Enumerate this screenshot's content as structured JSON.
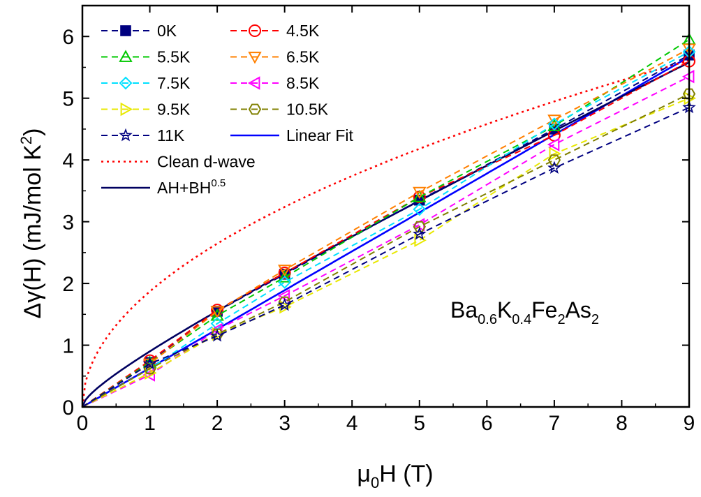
{
  "chart_data": {
    "type": "line",
    "xlabel": {
      "main": "μ",
      "sub": "0",
      "rest": "H (T)"
    },
    "ylabel": {
      "main": "Δγ(H) (mJ/mol K",
      "sup": "2",
      "rest": ")"
    },
    "xlim": [
      0,
      9
    ],
    "ylim": [
      0,
      6.5
    ],
    "xticks": [
      0,
      1,
      2,
      3,
      4,
      5,
      6,
      7,
      8,
      9
    ],
    "yticks": [
      0,
      1,
      2,
      3,
      4,
      5,
      6
    ],
    "grid": false,
    "legend_position": "top-left",
    "annotation": {
      "parts": [
        {
          "t": "Ba",
          "sub": false
        },
        {
          "t": "0.6",
          "sub": true
        },
        {
          "t": "K",
          "sub": false
        },
        {
          "t": "0.4",
          "sub": true
        },
        {
          "t": "Fe",
          "sub": false
        },
        {
          "t": "2",
          "sub": true
        },
        {
          "t": "As",
          "sub": false
        },
        {
          "t": "2",
          "sub": true
        }
      ]
    },
    "x": [
      0,
      1,
      2,
      3,
      5,
      7,
      9
    ],
    "series": [
      {
        "name": "0K",
        "color": "#000080",
        "marker": "square",
        "style": "dashed",
        "values": [
          0,
          0.72,
          1.55,
          2.15,
          3.35,
          4.5,
          5.7
        ]
      },
      {
        "name": "4.5K",
        "color": "#ff0000",
        "marker": "circle",
        "style": "dashed",
        "values": [
          0,
          0.75,
          1.57,
          2.17,
          3.4,
          4.4,
          5.6
        ]
      },
      {
        "name": "5.5K",
        "color": "#00c800",
        "marker": "triangle-up",
        "style": "dashed",
        "values": [
          0,
          0.72,
          1.48,
          2.1,
          3.4,
          4.55,
          5.95
        ]
      },
      {
        "name": "6.5K",
        "color": "#ff8000",
        "marker": "triangle-down",
        "style": "dashed",
        "values": [
          0,
          0.7,
          1.55,
          2.22,
          3.48,
          4.65,
          5.8
        ]
      },
      {
        "name": "7.5K",
        "color": "#00e0ff",
        "marker": "diamond",
        "style": "dashed",
        "values": [
          0,
          0.62,
          1.35,
          2.02,
          3.2,
          4.58,
          5.75
        ]
      },
      {
        "name": "8.5K",
        "color": "#ff00ff",
        "marker": "triangle-left",
        "style": "dashed",
        "values": [
          0,
          0.52,
          1.25,
          1.8,
          2.95,
          4.25,
          5.35
        ]
      },
      {
        "name": "9.5K",
        "color": "#e8e800",
        "marker": "triangle-right",
        "style": "dashed",
        "values": [
          0,
          0.55,
          1.18,
          1.62,
          2.7,
          4.1,
          5.0
        ]
      },
      {
        "name": "10.5K",
        "color": "#808000",
        "marker": "hexagon",
        "style": "dashed",
        "values": [
          0,
          0.62,
          1.18,
          1.7,
          2.92,
          4.0,
          5.07
        ]
      },
      {
        "name": "11K",
        "color": "#000080",
        "marker": "star",
        "style": "dashed",
        "values": [
          0,
          0.7,
          1.15,
          1.65,
          2.8,
          3.87,
          4.85
        ]
      }
    ],
    "fits": [
      {
        "name": "Linear Fit",
        "color": "#0000ff",
        "style": "solid",
        "kind": "linear",
        "slope": 0.63,
        "intercept": 0
      },
      {
        "name": "Clean d-wave",
        "color": "#ff0000",
        "style": "dotted",
        "kind": "sqrt",
        "coef": 1.87
      },
      {
        "name": {
          "main": "AH+BH",
          "sup": "0.5"
        },
        "color": "#000060",
        "style": "solid",
        "kind": "powsum",
        "a": 0.48,
        "b": 0.42,
        "exp": 0.5
      }
    ]
  }
}
